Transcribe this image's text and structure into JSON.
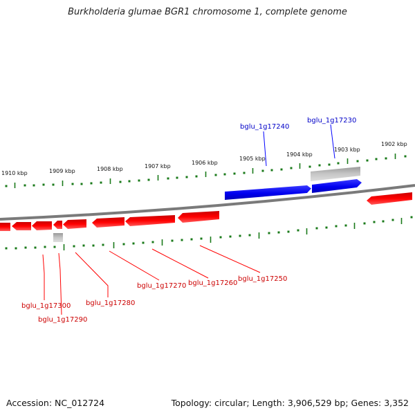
{
  "title": "Burkholderia glumae BGR1 chromosome 1, complete genome",
  "accession": "Accession: NC_012724",
  "topology": "Topology: circular; Length: 3,906,529 bp; Genes: 3,352",
  "colors": {
    "forward": "#0000ff",
    "reverse": "#ff0000",
    "pseudo": "#b0b0b0",
    "ticks": "#1a7a1a",
    "backbone": "#7a7a7a"
  },
  "scale_labels": [
    "1910 kbp",
    "1909 kbp",
    "1908 kbp",
    "1907 kbp",
    "1906 kbp",
    "1905 kbp",
    "1904 kbp",
    "1903 kbp",
    "1902 kbp"
  ],
  "gene_labels": [
    {
      "name": "bglu_1g17230",
      "strand": "forward"
    },
    {
      "name": "bglu_1g17240",
      "strand": "forward"
    },
    {
      "name": "bglu_1g17250",
      "strand": "reverse"
    },
    {
      "name": "bglu_1g17260",
      "strand": "reverse"
    },
    {
      "name": "bglu_1g17270",
      "strand": "reverse"
    },
    {
      "name": "bglu_1g17280",
      "strand": "reverse"
    },
    {
      "name": "bglu_1g17290",
      "strand": "reverse"
    },
    {
      "name": "bglu_1g17300",
      "strand": "reverse"
    }
  ]
}
